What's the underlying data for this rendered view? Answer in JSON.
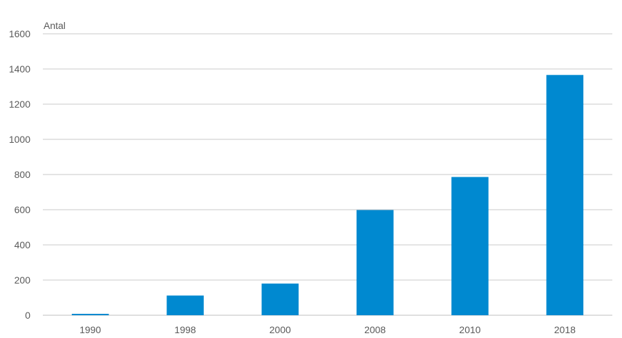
{
  "chart_data": {
    "type": "bar",
    "ylabel": "Antal",
    "categories": [
      "1990",
      "1998",
      "2000",
      "2008",
      "2010",
      "2018"
    ],
    "values": [
      8,
      112,
      180,
      598,
      786,
      1366
    ],
    "ylim": [
      0,
      1600
    ],
    "yticks": [
      0,
      200,
      400,
      600,
      800,
      1000,
      1200,
      1400,
      1600
    ],
    "grid": true,
    "legend": "none",
    "bar_color": "#0089d0"
  }
}
